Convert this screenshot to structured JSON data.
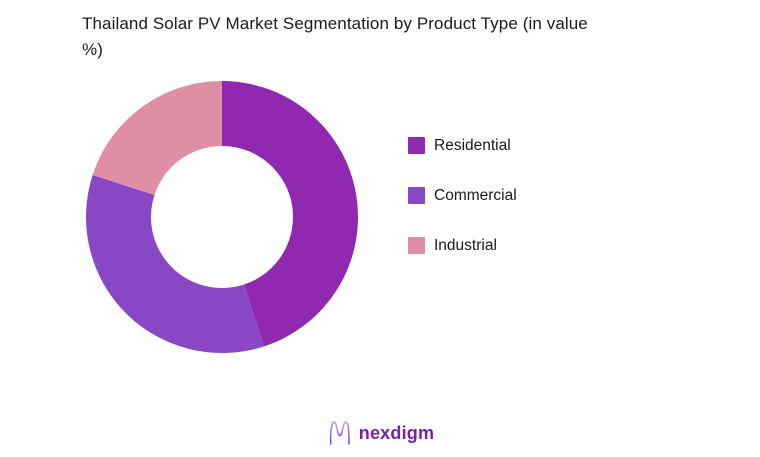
{
  "page": {
    "background": "#ffffff"
  },
  "chart": {
    "title": "Thailand Solar PV Market Segmentation by Product Type (in value %)"
  },
  "chart_data": {
    "type": "pie",
    "subtype": "donut",
    "title": "Thailand Solar PV Market Segmentation by Product Type (in value %)",
    "categories": [
      "Residential",
      "Commercial",
      "Industrial"
    ],
    "values": [
      45,
      35,
      20
    ],
    "unit": "percent of market value",
    "colors": [
      "#9128B0",
      "#8946C5",
      "#E08EA6"
    ],
    "legend_position": "right",
    "start_angle_deg": 0,
    "direction": "clockwise",
    "inner_radius_ratio": 0.52,
    "data_labels": false,
    "grid": false
  },
  "legend": {
    "items": [
      {
        "label": "Residential",
        "color": "#9128B0"
      },
      {
        "label": "Commercial",
        "color": "#8946C5"
      },
      {
        "label": "Industrial",
        "color": "#E08EA6"
      }
    ]
  },
  "footer": {
    "brand": "nexdigm",
    "logo_icon": "nexdigm-n-wave-mark",
    "brand_color": "#7D20A5"
  },
  "colors": {
    "title_text": "#1B1B1B",
    "legend_text": "#1B1B1B",
    "background": "#FFFFFF"
  }
}
